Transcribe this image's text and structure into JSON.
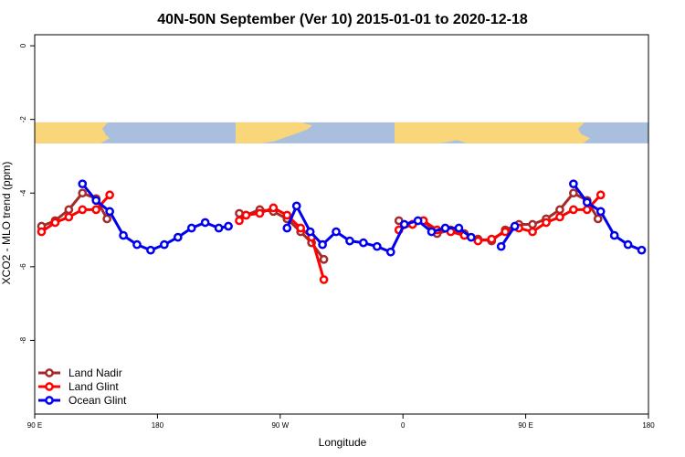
{
  "chart_data": {
    "type": "line",
    "title": "40N-50N September (Ver 10)   2015-01-01 to 2020-12-18",
    "xlabel": "Longitude",
    "ylabel": "XCO2 - MLO trend (ppm)",
    "xlim": [
      90,
      540
    ],
    "ylim": [
      -10,
      0.3
    ],
    "x_ticks": [
      {
        "value": 90,
        "label": "90 E"
      },
      {
        "value": 180,
        "label": "180"
      },
      {
        "value": 270,
        "label": "90 W"
      },
      {
        "value": 360,
        "label": "0"
      },
      {
        "value": 450,
        "label": "90 E"
      },
      {
        "value": 540,
        "label": "180"
      }
    ],
    "y_ticks": [
      {
        "value": 0,
        "label": "0"
      },
      {
        "value": -2,
        "label": "-2"
      },
      {
        "value": -4,
        "label": "-4"
      },
      {
        "value": -6,
        "label": "-6"
      },
      {
        "value": -8,
        "label": "-8"
      }
    ],
    "legend_position": "bottom-left",
    "map_strip": {
      "y_top": -2.08,
      "y_bottom": -2.65,
      "land_color": "#f9d67a",
      "ocean_color": "#a9bfdd"
    },
    "series": [
      {
        "name": "Land Nadir",
        "color": "#a52a2a",
        "segments": [
          [
            [
              95,
              -4.9
            ],
            [
              105,
              -4.75
            ],
            [
              115,
              -4.45
            ],
            [
              125,
              -4.0
            ],
            [
              135,
              -4.15
            ],
            [
              143,
              -4.7
            ]
          ],
          [
            [
              240,
              -4.55
            ],
            [
              245,
              -4.6
            ],
            [
              255,
              -4.45
            ],
            [
              265,
              -4.5
            ],
            [
              275,
              -4.7
            ],
            [
              285,
              -5.05
            ],
            [
              293,
              -5.35
            ],
            [
              302,
              -5.8
            ]
          ],
          [
            [
              357,
              -4.75
            ],
            [
              367,
              -4.85
            ],
            [
              375,
              -4.75
            ],
            [
              385,
              -5.1
            ],
            [
              395,
              -5.0
            ],
            [
              405,
              -5.1
            ],
            [
              415,
              -5.25
            ],
            [
              425,
              -5.3
            ],
            [
              435,
              -5.0
            ],
            [
              445,
              -4.85
            ],
            [
              455,
              -4.85
            ],
            [
              465,
              -4.7
            ],
            [
              475,
              -4.45
            ],
            [
              485,
              -4.0
            ],
            [
              495,
              -4.2
            ],
            [
              503,
              -4.7
            ]
          ]
        ]
      },
      {
        "name": "Land Glint",
        "color": "#ff0000",
        "segments": [
          [
            [
              95,
              -5.05
            ],
            [
              105,
              -4.8
            ],
            [
              115,
              -4.65
            ],
            [
              125,
              -4.45
            ],
            [
              135,
              -4.45
            ],
            [
              145,
              -4.05
            ]
          ],
          [
            [
              240,
              -4.75
            ],
            [
              245,
              -4.6
            ],
            [
              255,
              -4.55
            ],
            [
              265,
              -4.4
            ],
            [
              275,
              -4.6
            ],
            [
              285,
              -4.95
            ],
            [
              293,
              -5.2
            ],
            [
              302,
              -6.35
            ]
          ],
          [
            [
              357,
              -5.0
            ],
            [
              367,
              -4.85
            ],
            [
              375,
              -4.75
            ],
            [
              385,
              -5.0
            ],
            [
              395,
              -5.05
            ],
            [
              405,
              -5.15
            ],
            [
              415,
              -5.3
            ],
            [
              425,
              -5.25
            ],
            [
              435,
              -5.05
            ],
            [
              445,
              -4.95
            ],
            [
              455,
              -5.05
            ],
            [
              465,
              -4.8
            ],
            [
              475,
              -4.65
            ],
            [
              485,
              -4.45
            ],
            [
              495,
              -4.45
            ],
            [
              505,
              -4.05
            ]
          ]
        ]
      },
      {
        "name": "Ocean Glint",
        "color": "#0000ee",
        "segments": [
          [
            [
              125,
              -3.75
            ],
            [
              135,
              -4.2
            ],
            [
              145,
              -4.5
            ],
            [
              155,
              -5.15
            ],
            [
              165,
              -5.4
            ],
            [
              175,
              -5.55
            ],
            [
              185,
              -5.4
            ],
            [
              195,
              -5.2
            ],
            [
              205,
              -4.95
            ],
            [
              215,
              -4.8
            ],
            [
              225,
              -4.95
            ],
            [
              232,
              -4.9
            ]
          ],
          [
            [
              275,
              -4.95
            ],
            [
              282,
              -4.35
            ],
            [
              292,
              -5.05
            ],
            [
              301,
              -5.4
            ],
            [
              311,
              -5.05
            ],
            [
              321,
              -5.3
            ],
            [
              331,
              -5.35
            ],
            [
              341,
              -5.45
            ],
            [
              351,
              -5.6
            ],
            [
              361,
              -4.85
            ],
            [
              371,
              -4.75
            ],
            [
              381,
              -5.05
            ],
            [
              391,
              -4.95
            ],
            [
              401,
              -4.95
            ],
            [
              410,
              -5.2
            ]
          ],
          [
            [
              432,
              -5.45
            ],
            [
              442,
              -4.9
            ]
          ],
          [
            [
              485,
              -3.75
            ],
            [
              495,
              -4.25
            ],
            [
              505,
              -4.5
            ],
            [
              515,
              -5.15
            ],
            [
              525,
              -5.4
            ],
            [
              535,
              -5.55
            ]
          ]
        ]
      }
    ]
  }
}
